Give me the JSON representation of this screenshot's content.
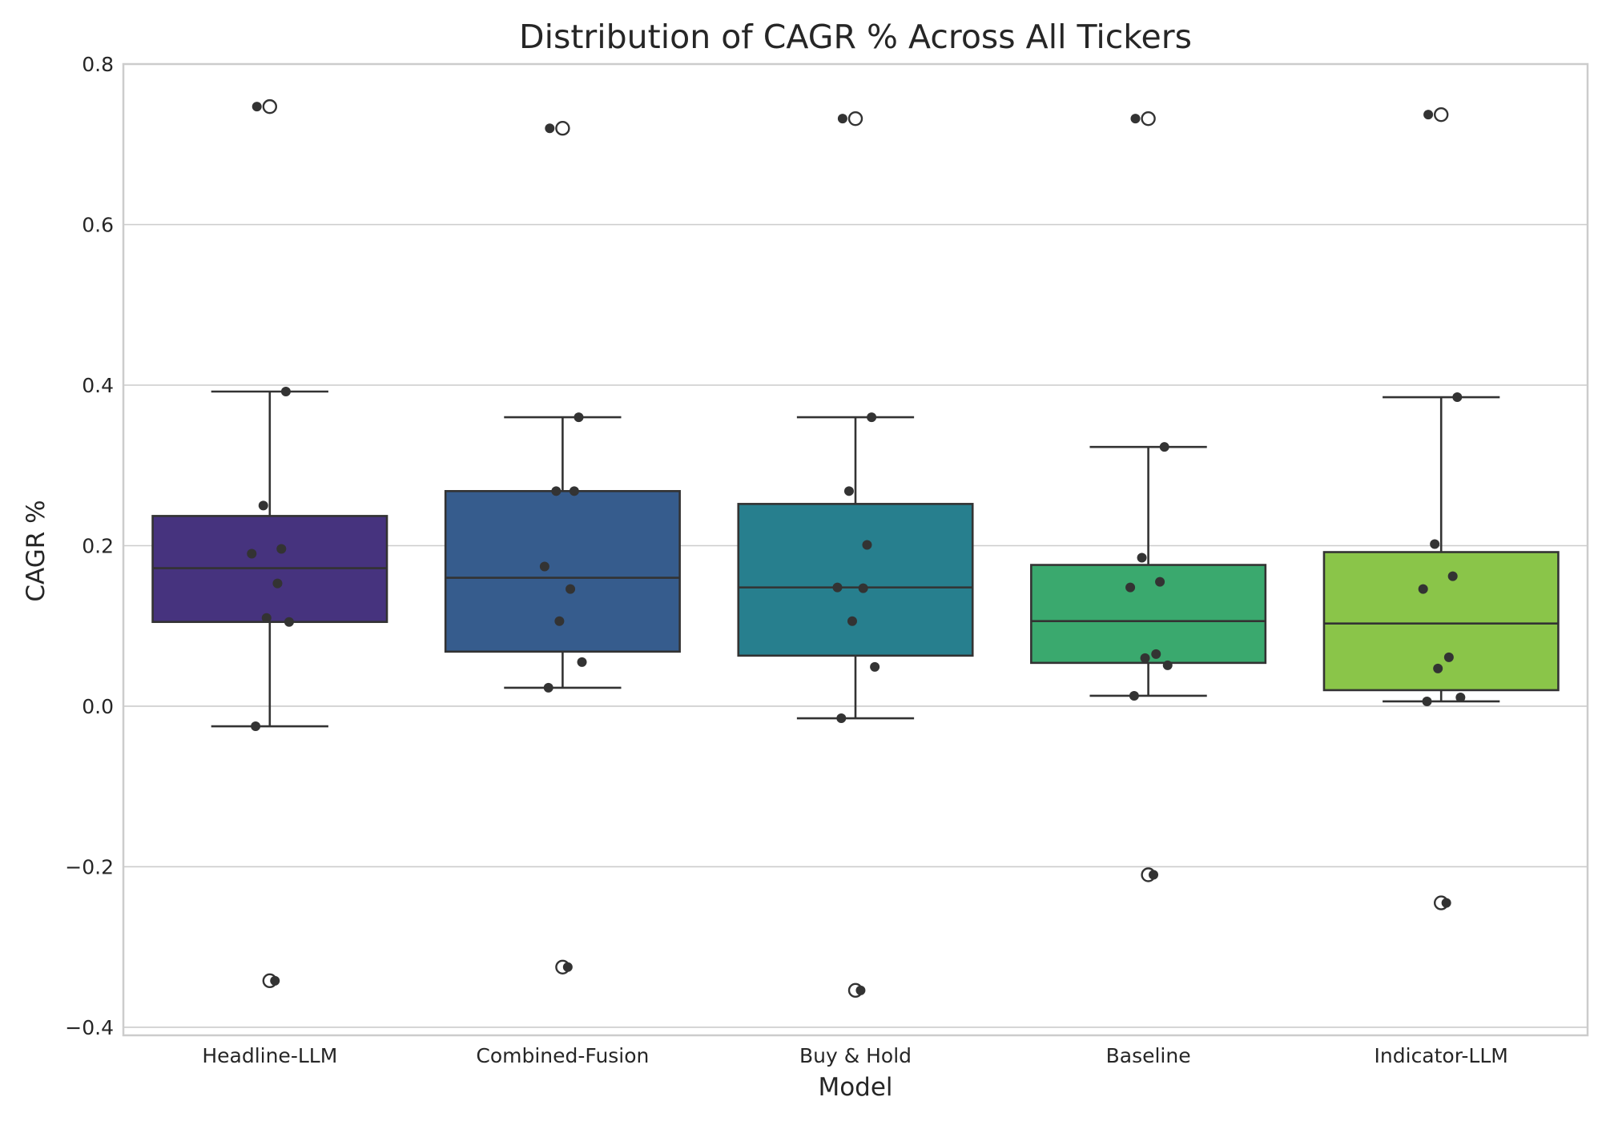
{
  "chart_data": {
    "type": "box",
    "title": "Distribution of CAGR % Across All Tickers",
    "xlabel": "Model",
    "ylabel": "CAGR %",
    "ylim": [
      -0.41,
      0.8
    ],
    "yticks": [
      -0.4,
      -0.2,
      0.0,
      0.2,
      0.4,
      0.6,
      0.8
    ],
    "ytick_labels": [
      "−0.4",
      "−0.2",
      "0.0",
      "0.2",
      "0.4",
      "0.6",
      "0.8"
    ],
    "grid": true,
    "categories": [
      "Headline-LLM",
      "Combined-Fusion",
      "Buy & Hold",
      "Baseline",
      "Indicator-LLM"
    ],
    "colors": [
      "#46337e",
      "#365c8d",
      "#277f8e",
      "#3aa96e",
      "#8ac549"
    ],
    "boxes": [
      {
        "category": "Headline-LLM",
        "whisker_low": -0.025,
        "q1": 0.105,
        "median": 0.172,
        "q3": 0.237,
        "whisker_high": 0.392,
        "fliers": [
          0.747,
          -0.342
        ]
      },
      {
        "category": "Combined-Fusion",
        "whisker_low": 0.023,
        "q1": 0.068,
        "median": 0.16,
        "q3": 0.268,
        "whisker_high": 0.36,
        "fliers": [
          0.72,
          -0.325
        ]
      },
      {
        "category": "Buy & Hold",
        "whisker_low": -0.015,
        "q1": 0.063,
        "median": 0.148,
        "q3": 0.252,
        "whisker_high": 0.36,
        "fliers": [
          0.732,
          -0.354
        ]
      },
      {
        "category": "Baseline",
        "whisker_low": 0.013,
        "q1": 0.054,
        "median": 0.106,
        "q3": 0.176,
        "whisker_high": 0.323,
        "fliers": [
          0.732,
          -0.21
        ]
      },
      {
        "category": "Indicator-LLM",
        "whisker_low": 0.006,
        "q1": 0.02,
        "median": 0.103,
        "q3": 0.192,
        "whisker_high": 0.385,
        "fliers": [
          0.737,
          -0.245
        ]
      }
    ],
    "points": [
      [
        0.747,
        0.392,
        0.25,
        0.196,
        0.19,
        0.153,
        0.11,
        0.105,
        -0.025,
        -0.342
      ],
      [
        0.72,
        0.36,
        0.268,
        0.268,
        0.174,
        0.146,
        0.106,
        0.055,
        0.023,
        -0.325
      ],
      [
        0.732,
        0.36,
        0.268,
        0.201,
        0.148,
        0.147,
        0.106,
        0.049,
        -0.015,
        -0.354
      ],
      [
        0.732,
        0.323,
        0.185,
        0.155,
        0.148,
        0.065,
        0.06,
        0.051,
        0.013,
        -0.21
      ],
      [
        0.737,
        0.385,
        0.202,
        0.162,
        0.146,
        0.061,
        0.047,
        0.011,
        0.006,
        -0.245
      ]
    ]
  }
}
